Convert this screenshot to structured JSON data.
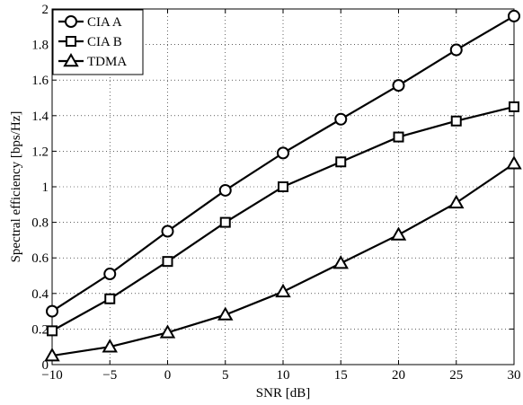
{
  "chart_data": {
    "type": "line",
    "title": "",
    "xlabel": "SNR [dB]",
    "ylabel": "Spectral efficiency [bps/Hz]",
    "xlim": [
      -10,
      30
    ],
    "ylim": [
      0,
      2
    ],
    "grid": true,
    "legend_position": "top-left",
    "x": [
      -10,
      -5,
      0,
      5,
      10,
      15,
      20,
      25,
      30
    ],
    "x_ticks": [
      -10,
      -5,
      0,
      5,
      10,
      15,
      20,
      25,
      30
    ],
    "x_tick_labels": [
      "−10",
      "−5",
      "0",
      "5",
      "10",
      "15",
      "20",
      "25",
      "30"
    ],
    "y_ticks": [
      0,
      0.2,
      0.4,
      0.6,
      0.8,
      1,
      1.2,
      1.4,
      1.6,
      1.8,
      2
    ],
    "y_tick_labels": [
      "0",
      "0.2",
      "0.4",
      "0.6",
      "0.8",
      "1",
      "1.2",
      "1.4",
      "1.6",
      "1.8",
      "2"
    ],
    "series": [
      {
        "name": "CIA A",
        "marker": "circle",
        "color": "#000000",
        "values": [
          0.3,
          0.51,
          0.75,
          0.98,
          1.19,
          1.38,
          1.57,
          1.77,
          1.96
        ]
      },
      {
        "name": "CIA B",
        "marker": "square",
        "color": "#000000",
        "values": [
          0.19,
          0.37,
          0.58,
          0.8,
          1.0,
          1.14,
          1.28,
          1.37,
          1.45
        ]
      },
      {
        "name": "TDMA",
        "marker": "triangle",
        "color": "#000000",
        "values": [
          0.05,
          0.1,
          0.18,
          0.28,
          0.41,
          0.57,
          0.73,
          0.91,
          1.13
        ]
      }
    ]
  }
}
